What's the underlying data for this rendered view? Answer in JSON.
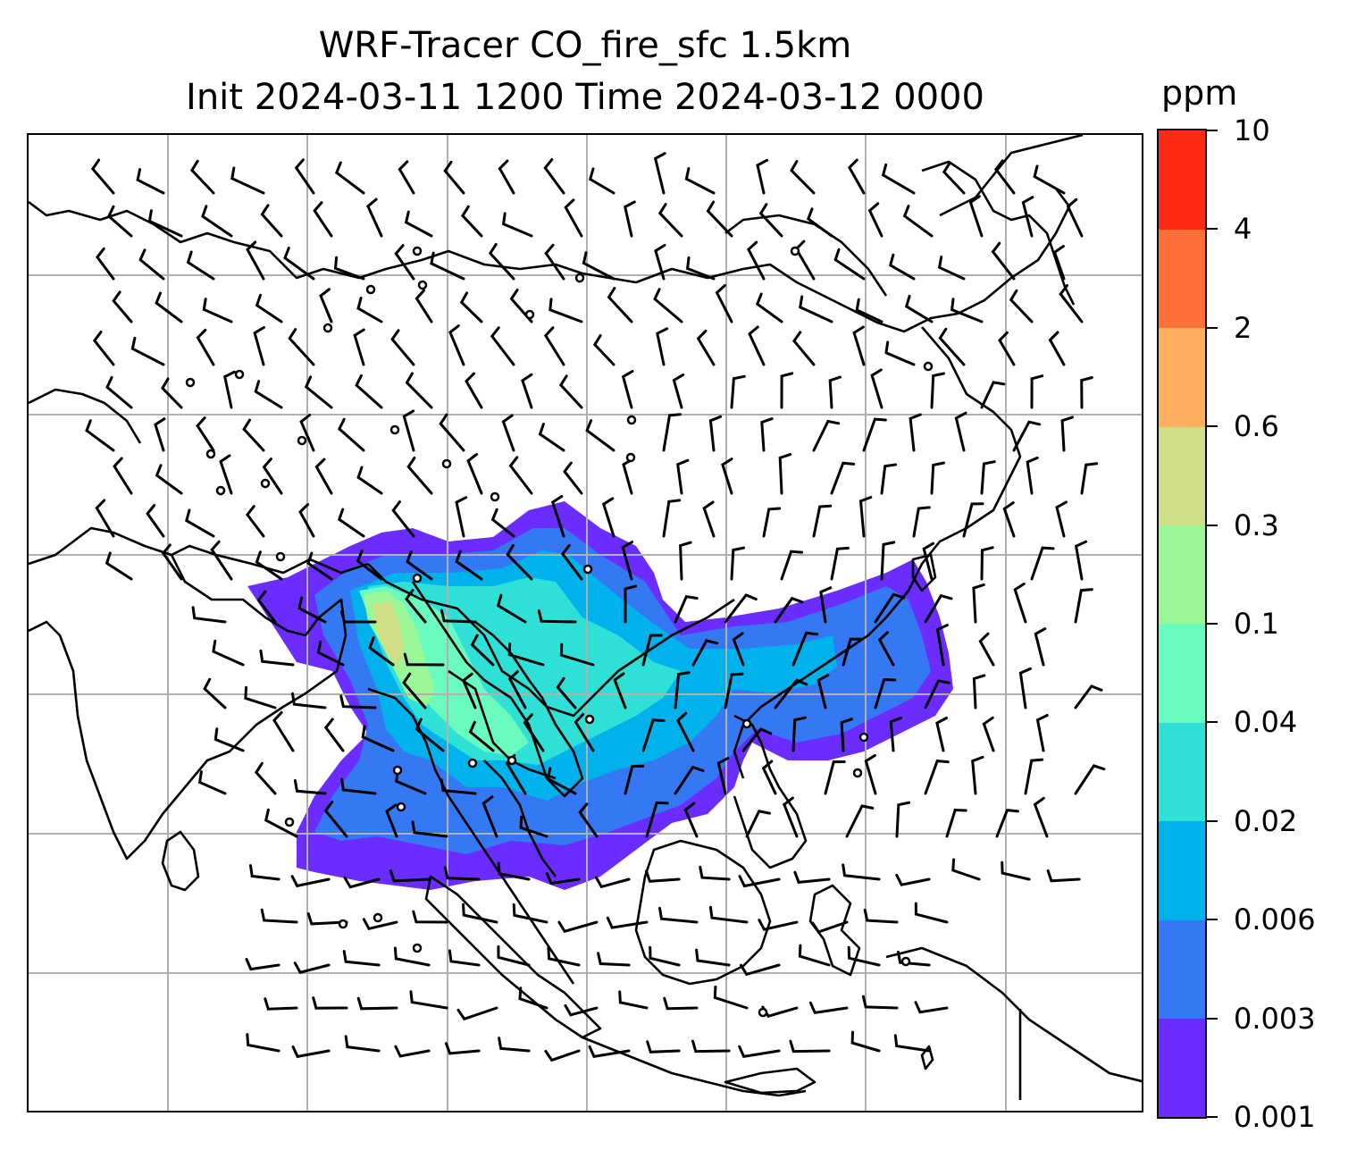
{
  "title": {
    "line1": "WRF-Tracer CO_fire_sfc 1.5km",
    "line2": "Init 2024-03-11 1200 Time 2024-03-12 0000"
  },
  "colorbar": {
    "unit": "ppm",
    "levels": [
      "0.001",
      "0.003",
      "0.006",
      "0.02",
      "0.04",
      "0.1",
      "0.3",
      "0.6",
      "2",
      "4",
      "10"
    ],
    "colors": [
      "#6a2cff",
      "#3478f4",
      "#00b2ec",
      "#2ee0d6",
      "#6afbbf",
      "#9af797",
      "#cfdf85",
      "#ffb05e",
      "#ff7039",
      "#ff2a14"
    ]
  },
  "map": {
    "field": "CO_fire_sfc",
    "gridlines": true,
    "overlays": [
      "coastlines",
      "country-borders",
      "wind-barbs",
      "station-markers"
    ]
  }
}
